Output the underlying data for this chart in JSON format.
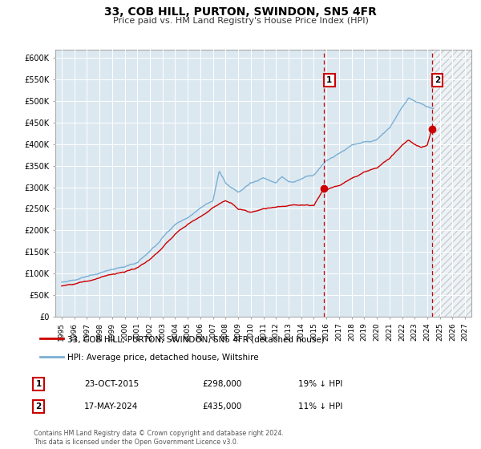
{
  "title": "33, COB HILL, PURTON, SWINDON, SN5 4FR",
  "subtitle": "Price paid vs. HM Land Registry's House Price Index (HPI)",
  "legend_label1": "33, COB HILL, PURTON, SWINDON, SN5 4FR (detached house)",
  "legend_label2": "HPI: Average price, detached house, Wiltshire",
  "footnote": "Contains HM Land Registry data © Crown copyright and database right 2024.\nThis data is licensed under the Open Government Licence v3.0.",
  "red_color": "#cc0000",
  "blue_color": "#7bafd4",
  "bg_plot": "#dce8f0",
  "marker1_x": 2015.81,
  "marker1_y": 298000,
  "marker2_x": 2024.37,
  "marker2_y": 435000,
  "vline1_x": 2015.81,
  "vline2_x": 2024.37,
  "ann1_label": "1",
  "ann2_label": "2",
  "ann1_text": "23-OCT-2015",
  "ann1_price": "£298,000",
  "ann1_hpi": "19% ↓ HPI",
  "ann2_text": "17-MAY-2024",
  "ann2_price": "£435,000",
  "ann2_hpi": "11% ↓ HPI",
  "ylim": [
    0,
    620000
  ],
  "xlim": [
    1994.5,
    2027.5
  ],
  "yticks": [
    0,
    50000,
    100000,
    150000,
    200000,
    250000,
    300000,
    350000,
    400000,
    450000,
    500000,
    550000,
    600000
  ],
  "ytick_labels": [
    "£0",
    "£50K",
    "£100K",
    "£150K",
    "£200K",
    "£250K",
    "£300K",
    "£350K",
    "£400K",
    "£450K",
    "£500K",
    "£550K",
    "£600K"
  ],
  "xticks": [
    1995,
    1996,
    1997,
    1998,
    1999,
    2000,
    2001,
    2002,
    2003,
    2004,
    2005,
    2006,
    2007,
    2008,
    2009,
    2010,
    2011,
    2012,
    2013,
    2014,
    2015,
    2016,
    2017,
    2018,
    2019,
    2020,
    2021,
    2022,
    2023,
    2024,
    2025,
    2026,
    2027
  ],
  "hatch_start_x": 2024.37,
  "hpi_key_points": [
    [
      1995,
      80000
    ],
    [
      1996,
      85000
    ],
    [
      1997,
      92000
    ],
    [
      1998,
      100000
    ],
    [
      1999,
      110000
    ],
    [
      2000,
      115000
    ],
    [
      2001,
      125000
    ],
    [
      2002,
      150000
    ],
    [
      2003,
      182000
    ],
    [
      2004,
      215000
    ],
    [
      2005,
      228000
    ],
    [
      2006,
      252000
    ],
    [
      2007,
      268000
    ],
    [
      2007.5,
      340000
    ],
    [
      2008,
      310000
    ],
    [
      2009,
      288000
    ],
    [
      2010,
      310000
    ],
    [
      2011,
      320000
    ],
    [
      2012,
      310000
    ],
    [
      2012.5,
      325000
    ],
    [
      2013,
      312000
    ],
    [
      2014,
      318000
    ],
    [
      2015,
      330000
    ],
    [
      2016,
      360000
    ],
    [
      2017,
      378000
    ],
    [
      2018,
      398000
    ],
    [
      2019,
      405000
    ],
    [
      2020,
      410000
    ],
    [
      2021,
      438000
    ],
    [
      2022,
      485000
    ],
    [
      2022.5,
      508000
    ],
    [
      2023,
      500000
    ],
    [
      2023.5,
      495000
    ],
    [
      2024,
      488000
    ],
    [
      2024.5,
      482000
    ]
  ],
  "price_key_points": [
    [
      1995,
      72000
    ],
    [
      1996,
      76000
    ],
    [
      1997,
      82000
    ],
    [
      1998,
      90000
    ],
    [
      1999,
      98000
    ],
    [
      2000,
      104000
    ],
    [
      2001,
      112000
    ],
    [
      2002,
      132000
    ],
    [
      2003,
      160000
    ],
    [
      2004,
      192000
    ],
    [
      2005,
      215000
    ],
    [
      2006,
      232000
    ],
    [
      2007,
      252000
    ],
    [
      2008,
      268000
    ],
    [
      2008.5,
      262000
    ],
    [
      2009,
      248000
    ],
    [
      2010,
      242000
    ],
    [
      2011,
      250000
    ],
    [
      2012,
      255000
    ],
    [
      2013,
      258000
    ],
    [
      2014,
      260000
    ],
    [
      2015,
      258000
    ],
    [
      2015.81,
      298000
    ],
    [
      2016,
      294000
    ],
    [
      2017,
      305000
    ],
    [
      2018,
      320000
    ],
    [
      2019,
      335000
    ],
    [
      2020,
      345000
    ],
    [
      2021,
      368000
    ],
    [
      2022,
      398000
    ],
    [
      2022.5,
      410000
    ],
    [
      2023,
      400000
    ],
    [
      2023.5,
      392000
    ],
    [
      2024,
      398000
    ],
    [
      2024.37,
      435000
    ]
  ]
}
